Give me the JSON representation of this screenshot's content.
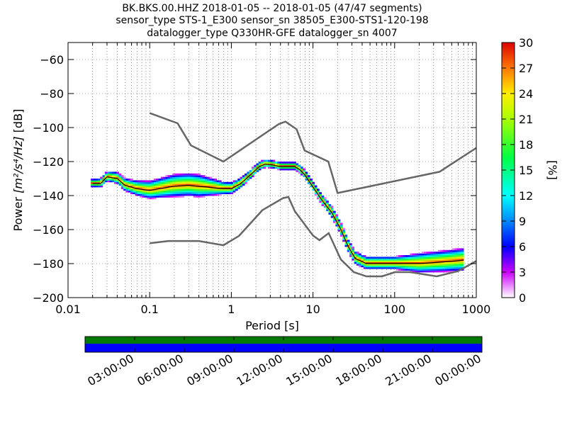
{
  "chart_data": {
    "type": "heatmap",
    "title_lines": [
      "BK.BKS.00.HHZ   2018-01-05 -- 2018-01-05  (47/47 segments)",
      "sensor_type STS-1_E300 sensor_sn 38505_E300-STS1-120-198",
      "datalogger_type Q330HR-GFE datalogger_sn 4007"
    ],
    "xlabel": "Period [s]",
    "ylabel_prefix": "Power ",
    "ylabel_math": "[m²/s⁴/Hz]",
    "ylabel_suffix": " [dB]",
    "x_scale": "log",
    "xlim": [
      0.01,
      1000
    ],
    "ylim": [
      -200,
      -50
    ],
    "x_tick_labels": [
      "0.01",
      "0.1",
      "1",
      "10",
      "100",
      "1000"
    ],
    "x_tick_values": [
      0.01,
      0.1,
      1,
      10,
      100,
      1000
    ],
    "y_tick_values": [
      -200,
      -180,
      -160,
      -140,
      -120,
      -100,
      -80,
      -60
    ],
    "y_tick_labels": [
      "−200",
      "−180",
      "−160",
      "−140",
      "−120",
      "−100",
      "−80",
      "−60"
    ],
    "grid": true,
    "colorbar": {
      "label": "[%]",
      "range": [
        0,
        30
      ],
      "tick_values": [
        0,
        3,
        6,
        9,
        12,
        15,
        18,
        21,
        24,
        27,
        30
      ],
      "tick_labels": [
        "0",
        "3",
        "6",
        "9",
        "12",
        "15",
        "18",
        "21",
        "24",
        "27",
        "30"
      ]
    },
    "noise_model_high": [
      [
        0.1,
        -91.5
      ],
      [
        0.22,
        -97.5
      ],
      [
        0.32,
        -110.5
      ],
      [
        0.8,
        -120
      ],
      [
        3.8,
        -98
      ],
      [
        4.6,
        -96.5
      ],
      [
        6.3,
        -101
      ],
      [
        7.9,
        -113.5
      ],
      [
        15.4,
        -120
      ],
      [
        20,
        -138.5
      ],
      [
        354.8,
        -126
      ],
      [
        1000,
        -112
      ]
    ],
    "noise_model_low": [
      [
        0.1,
        -168
      ],
      [
        0.17,
        -166.7
      ],
      [
        0.4,
        -166.7
      ],
      [
        0.8,
        -169.2
      ],
      [
        1.24,
        -163.7
      ],
      [
        2.4,
        -148.6
      ],
      [
        4.3,
        -141.5
      ],
      [
        5.0,
        -140.8
      ],
      [
        6.0,
        -149.2
      ],
      [
        10,
        -163.5
      ],
      [
        12,
        -166.2
      ],
      [
        15.6,
        -162.1
      ],
      [
        21.9,
        -177.5
      ],
      [
        31.6,
        -185
      ],
      [
        45,
        -187.5
      ],
      [
        70,
        -187.5
      ],
      [
        101,
        -185
      ],
      [
        154,
        -185
      ],
      [
        328,
        -187.5
      ],
      [
        600,
        -184.4
      ],
      [
        1000,
        -178.5
      ]
    ],
    "mode_curve": [
      [
        0.02,
        -133
      ],
      [
        0.025,
        -133
      ],
      [
        0.03,
        -129
      ],
      [
        0.04,
        -130
      ],
      [
        0.05,
        -134
      ],
      [
        0.07,
        -136
      ],
      [
        0.1,
        -137
      ],
      [
        0.15,
        -135.5
      ],
      [
        0.2,
        -134.5
      ],
      [
        0.3,
        -134
      ],
      [
        0.5,
        -135
      ],
      [
        0.8,
        -136
      ],
      [
        1.0,
        -136
      ],
      [
        1.3,
        -133
      ],
      [
        1.7,
        -128
      ],
      [
        2.2,
        -123
      ],
      [
        2.6,
        -121.5
      ],
      [
        3.2,
        -122
      ],
      [
        4.0,
        -123
      ],
      [
        5.0,
        -123
      ],
      [
        6.0,
        -123
      ],
      [
        7.0,
        -125
      ],
      [
        8.0,
        -128
      ],
      [
        10,
        -135
      ],
      [
        13,
        -143
      ],
      [
        17,
        -150
      ],
      [
        22,
        -160
      ],
      [
        27,
        -170
      ],
      [
        33,
        -177
      ],
      [
        45,
        -180
      ],
      [
        70,
        -180
      ],
      [
        100,
        -180
      ],
      [
        200,
        -180
      ],
      [
        400,
        -179
      ],
      [
        700,
        -178
      ]
    ],
    "density_band_halfwidth_db": [
      [
        0.02,
        1.5
      ],
      [
        0.05,
        3
      ],
      [
        0.1,
        4.5
      ],
      [
        0.2,
        6
      ],
      [
        0.4,
        6
      ],
      [
        0.8,
        3
      ],
      [
        1.5,
        2
      ],
      [
        3,
        1.5
      ],
      [
        6,
        1.5
      ],
      [
        12,
        2
      ],
      [
        25,
        3
      ],
      [
        40,
        3
      ],
      [
        100,
        3
      ],
      [
        200,
        5
      ],
      [
        700,
        6
      ]
    ],
    "time_axis": {
      "tick_labels": [
        "03:00:00",
        "06:00:00",
        "09:00:00",
        "12:00:00",
        "15:00:00",
        "18:00:00",
        "21:00:00",
        "00:00:00"
      ],
      "tick_hours": [
        3,
        6,
        9,
        12,
        15,
        18,
        21,
        24
      ],
      "range_hours": [
        0,
        24
      ],
      "band_colors": [
        "#007a00",
        "#0000ff"
      ]
    }
  }
}
